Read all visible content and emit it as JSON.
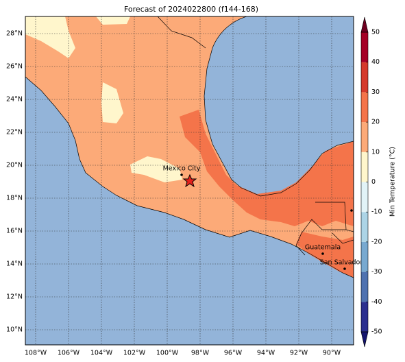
{
  "title": "Forecast of 2024022800 (f144-168)",
  "map": {
    "lat_labels": [
      "28°N",
      "26°N",
      "24°N",
      "22°N",
      "20°N",
      "18°N",
      "16°N",
      "14°N",
      "12°N",
      "10°N"
    ],
    "lon_labels": [
      "108°W",
      "106°W",
      "104°W",
      "102°W",
      "100°W",
      "98°W",
      "96°W",
      "94°W",
      "92°W",
      "90°W"
    ],
    "cities": [
      {
        "name": "Mexico City"
      },
      {
        "name": "Guatemala"
      },
      {
        "name": "San Salvador"
      }
    ]
  },
  "colorbar": {
    "label": "Min Temperature (°C)",
    "ticks": [
      -50,
      -40,
      -30,
      -20,
      -10,
      0,
      10,
      20,
      30,
      40,
      50
    ],
    "colors": [
      "#2b2f8f",
      "#4f72b0",
      "#78a9d0",
      "#acd4e6",
      "#e2f3f7",
      "#fff6cc",
      "#fcaa78",
      "#f4744a",
      "#d53a2c",
      "#a50026"
    ],
    "under": "#14146e",
    "over": "#6e0020"
  }
}
